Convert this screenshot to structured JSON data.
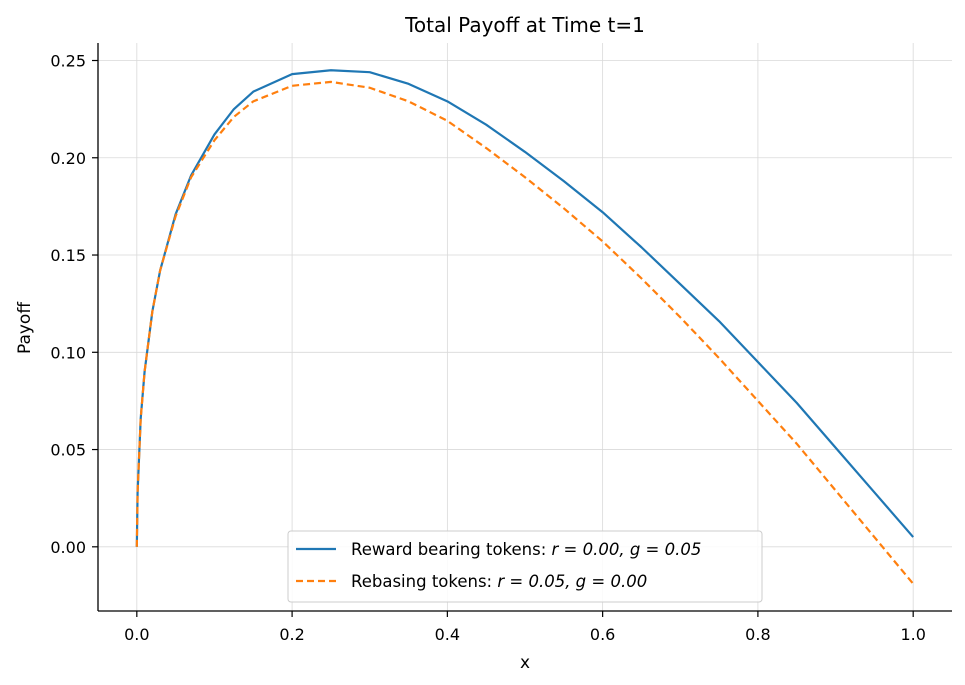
{
  "chart_data": {
    "type": "line",
    "title": "Total Payoff at Time t=1",
    "xlabel": "x",
    "ylabel": "Payoff",
    "xlim": [
      -0.05,
      1.05
    ],
    "ylim": [
      -0.033,
      0.259
    ],
    "xticks": [
      0.0,
      0.2,
      0.4,
      0.6,
      0.8,
      1.0
    ],
    "xtick_labels": [
      "0.0",
      "0.2",
      "0.4",
      "0.6",
      "0.8",
      "1.0"
    ],
    "yticks": [
      0.0,
      0.05,
      0.1,
      0.15,
      0.2,
      0.25
    ],
    "ytick_labels": [
      "0.00",
      "0.05",
      "0.10",
      "0.15",
      "0.20",
      "0.25"
    ],
    "grid": true,
    "legend_position": "bottom-center",
    "series": [
      {
        "name": "Reward bearing tokens: r = 0.00, g = 0.05",
        "legend_prefix": "Reward bearing tokens: ",
        "legend_math": "r = 0.00, g = 0.05",
        "color": "#1f77b4",
        "style": "solid",
        "x": [
          0.0,
          0.001,
          0.005,
          0.01,
          0.02,
          0.03,
          0.05,
          0.07,
          0.1,
          0.125,
          0.15,
          0.2,
          0.25,
          0.3,
          0.35,
          0.4,
          0.45,
          0.5,
          0.55,
          0.6,
          0.65,
          0.7,
          0.75,
          0.8,
          0.85,
          0.9,
          0.95,
          1.0
        ],
        "y": [
          0.0,
          0.028,
          0.066,
          0.09,
          0.121,
          0.142,
          0.171,
          0.191,
          0.212,
          0.225,
          0.234,
          0.243,
          0.245,
          0.244,
          0.238,
          0.229,
          0.217,
          0.203,
          0.188,
          0.172,
          0.154,
          0.135,
          0.116,
          0.095,
          0.074,
          0.051,
          0.028,
          0.005
        ]
      },
      {
        "name": "Rebasing tokens: r = 0.05, g = 0.00",
        "legend_prefix": "Rebasing tokens: ",
        "legend_math": "r = 0.05, g = 0.00",
        "color": "#ff7f0e",
        "style": "dashed",
        "x": [
          0.0,
          0.001,
          0.005,
          0.01,
          0.02,
          0.03,
          0.05,
          0.07,
          0.1,
          0.125,
          0.15,
          0.2,
          0.25,
          0.3,
          0.35,
          0.4,
          0.45,
          0.5,
          0.55,
          0.6,
          0.65,
          0.7,
          0.75,
          0.8,
          0.85,
          0.9,
          0.95,
          1.0
        ],
        "y": [
          0.0,
          0.028,
          0.066,
          0.09,
          0.121,
          0.142,
          0.17,
          0.19,
          0.209,
          0.221,
          0.229,
          0.237,
          0.239,
          0.236,
          0.229,
          0.219,
          0.205,
          0.19,
          0.174,
          0.157,
          0.138,
          0.118,
          0.097,
          0.075,
          0.053,
          0.029,
          0.005,
          -0.019
        ]
      }
    ]
  }
}
